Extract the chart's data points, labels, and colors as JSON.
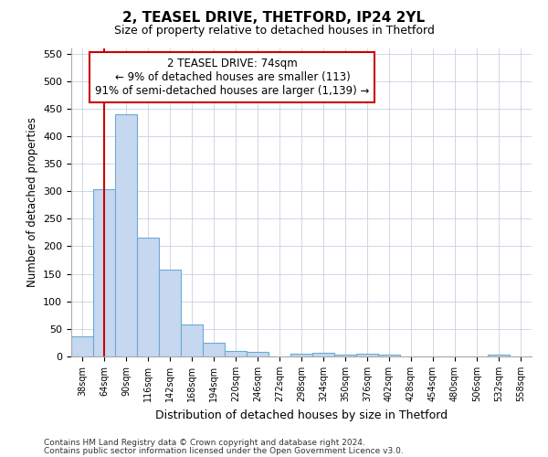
{
  "title1": "2, TEASEL DRIVE, THETFORD, IP24 2YL",
  "title2": "Size of property relative to detached houses in Thetford",
  "xlabel": "Distribution of detached houses by size in Thetford",
  "ylabel": "Number of detached properties",
  "footnote1": "Contains HM Land Registry data © Crown copyright and database right 2024.",
  "footnote2": "Contains public sector information licensed under the Open Government Licence v3.0.",
  "bins": [
    "38sqm",
    "64sqm",
    "90sqm",
    "116sqm",
    "142sqm",
    "168sqm",
    "194sqm",
    "220sqm",
    "246sqm",
    "272sqm",
    "298sqm",
    "324sqm",
    "350sqm",
    "376sqm",
    "402sqm",
    "428sqm",
    "454sqm",
    "480sqm",
    "506sqm",
    "532sqm",
    "558sqm"
  ],
  "values": [
    37,
    303,
    440,
    215,
    157,
    58,
    25,
    10,
    8,
    0,
    5,
    6,
    3,
    5,
    3,
    0,
    0,
    0,
    0,
    4,
    0
  ],
  "bar_color": "#c5d8f0",
  "bar_edge_color": "#6aaad4",
  "marker_label1": "2 TEASEL DRIVE: 74sqm",
  "marker_label2": "← 9% of detached houses are smaller (113)",
  "marker_label3": "91% of semi-detached houses are larger (1,139) →",
  "marker_color": "#cc0000",
  "ylim": [
    0,
    560
  ],
  "yticks": [
    0,
    50,
    100,
    150,
    200,
    250,
    300,
    350,
    400,
    450,
    500,
    550
  ],
  "background_color": "#ffffff",
  "grid_color": "#c8d0e0"
}
